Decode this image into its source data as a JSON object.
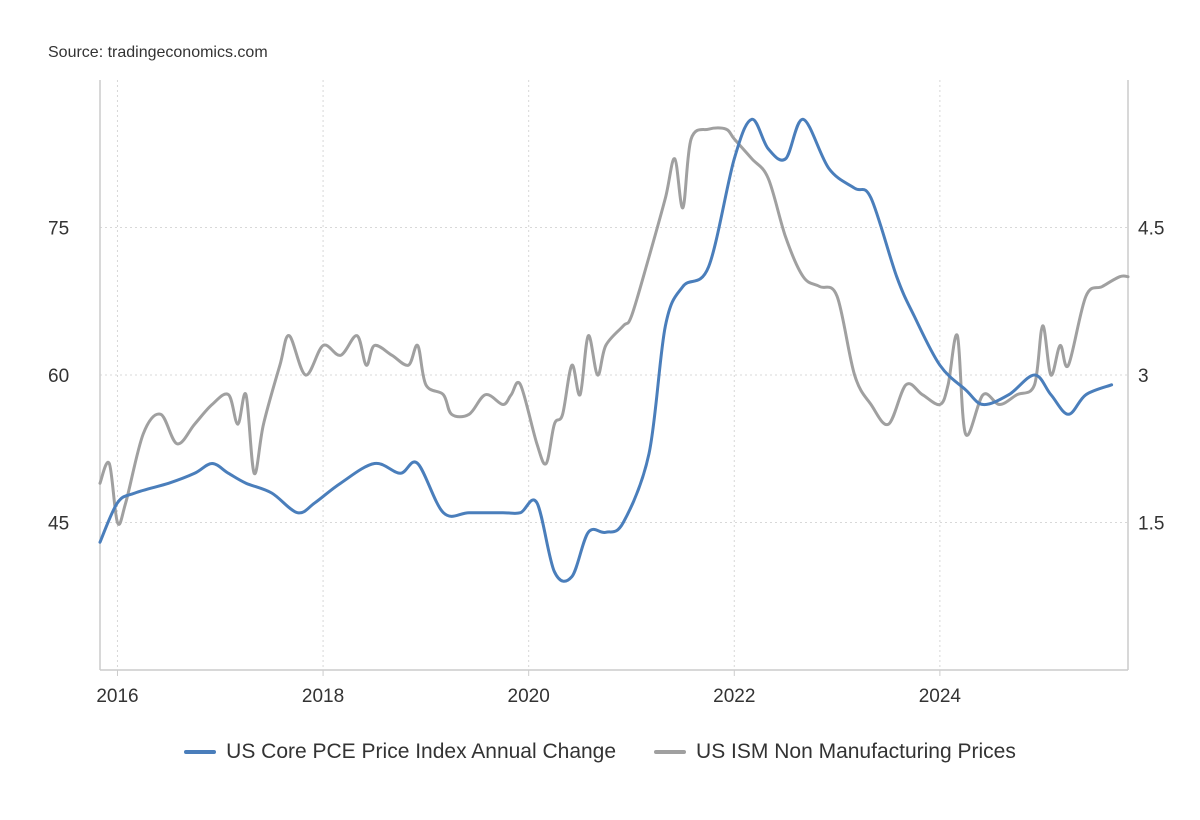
{
  "source_label": "Source: tradingeconomics.com",
  "colors": {
    "pce": "#4a7ebb",
    "ism": "#a0a0a0",
    "grid": "#d8d8d8",
    "axis": "#cccccc",
    "text": "#333333"
  },
  "chart_data": {
    "type": "line",
    "title": "",
    "xlabel": "",
    "x_ticks": [
      "2016",
      "2018",
      "2020",
      "2022",
      "2024"
    ],
    "x_tick_years": [
      2016,
      2018,
      2020,
      2022,
      2024
    ],
    "xlim": [
      2015.83,
      2025.83
    ],
    "left_axis": {
      "ticks": [
        "45",
        "60",
        "75"
      ],
      "tick_values": [
        45,
        60,
        75
      ],
      "ylim": [
        30,
        90
      ]
    },
    "right_axis": {
      "ticks": [
        "1.5",
        "3",
        "4.5"
      ],
      "tick_values": [
        1.5,
        3,
        4.5
      ],
      "ylim": [
        0,
        6
      ]
    },
    "legend": [
      {
        "name": "US Core PCE Price Index Annual Change",
        "color": "#4a7ebb"
      },
      {
        "name": "US ISM Non Manufacturing Prices",
        "color": "#a0a0a0"
      }
    ],
    "series": [
      {
        "name": "US Core PCE Price Index Annual Change",
        "axis": "right",
        "color": "#4a7ebb",
        "x": [
          2015.83,
          2016.0,
          2016.17,
          2016.5,
          2016.75,
          2016.92,
          2017.08,
          2017.25,
          2017.5,
          2017.75,
          2017.92,
          2018.17,
          2018.5,
          2018.75,
          2018.92,
          2019.17,
          2019.42,
          2019.75,
          2019.92,
          2020.08,
          2020.25,
          2020.42,
          2020.58,
          2020.75,
          2020.92,
          2021.17,
          2021.33,
          2021.5,
          2021.75,
          2022.0,
          2022.17,
          2022.33,
          2022.5,
          2022.67,
          2022.92,
          2023.17,
          2023.33,
          2023.58,
          2023.75,
          2024.0,
          2024.25,
          2024.42,
          2024.67,
          2024.92,
          2025.08,
          2025.25,
          2025.42,
          2025.67
        ],
        "values": [
          1.3,
          1.7,
          1.8,
          1.9,
          2.0,
          2.1,
          2.0,
          1.9,
          1.8,
          1.6,
          1.7,
          1.9,
          2.1,
          2.0,
          2.1,
          1.6,
          1.6,
          1.6,
          1.6,
          1.7,
          1.0,
          0.95,
          1.4,
          1.4,
          1.5,
          2.2,
          3.5,
          3.9,
          4.1,
          5.2,
          5.6,
          5.3,
          5.2,
          5.6,
          5.1,
          4.9,
          4.8,
          4.0,
          3.6,
          3.1,
          2.85,
          2.7,
          2.8,
          3.0,
          2.8,
          2.6,
          2.8,
          2.9
        ]
      },
      {
        "name": "US ISM Non Manufacturing Prices",
        "axis": "left",
        "color": "#a0a0a0",
        "x": [
          2015.83,
          2015.92,
          2016.0,
          2016.08,
          2016.25,
          2016.42,
          2016.58,
          2016.75,
          2016.92,
          2017.08,
          2017.17,
          2017.25,
          2017.33,
          2017.42,
          2017.58,
          2017.67,
          2017.83,
          2018.0,
          2018.17,
          2018.33,
          2018.42,
          2018.5,
          2018.67,
          2018.83,
          2018.92,
          2019.0,
          2019.17,
          2019.25,
          2019.42,
          2019.58,
          2019.75,
          2019.83,
          2019.92,
          2020.08,
          2020.17,
          2020.25,
          2020.33,
          2020.42,
          2020.5,
          2020.58,
          2020.67,
          2020.75,
          2020.92,
          2021.0,
          2021.17,
          2021.33,
          2021.42,
          2021.5,
          2021.58,
          2021.75,
          2021.92,
          2022.0,
          2022.17,
          2022.33,
          2022.5,
          2022.67,
          2022.83,
          2023.0,
          2023.17,
          2023.33,
          2023.5,
          2023.67,
          2023.83,
          2024.0,
          2024.08,
          2024.17,
          2024.25,
          2024.42,
          2024.58,
          2024.75,
          2024.92,
          2025.0,
          2025.08,
          2025.17,
          2025.25,
          2025.42,
          2025.58,
          2025.75,
          2025.83
        ],
        "values": [
          49,
          51,
          45,
          47,
          54,
          56,
          53,
          55,
          57,
          58,
          55,
          58,
          50,
          55,
          61,
          64,
          60,
          63,
          62,
          64,
          61,
          63,
          62,
          61,
          63,
          59,
          58,
          56,
          56,
          58,
          57,
          58,
          59,
          53,
          51,
          55,
          56,
          61,
          58,
          64,
          60,
          63,
          65,
          66,
          72,
          78,
          82,
          77,
          84,
          85,
          85,
          84,
          82,
          80,
          74,
          70,
          69,
          68,
          60,
          57,
          55,
          59,
          58,
          57,
          59,
          64,
          54,
          58,
          57,
          58,
          59,
          65,
          60,
          63,
          61,
          68,
          69,
          70,
          70
        ]
      }
    ]
  }
}
